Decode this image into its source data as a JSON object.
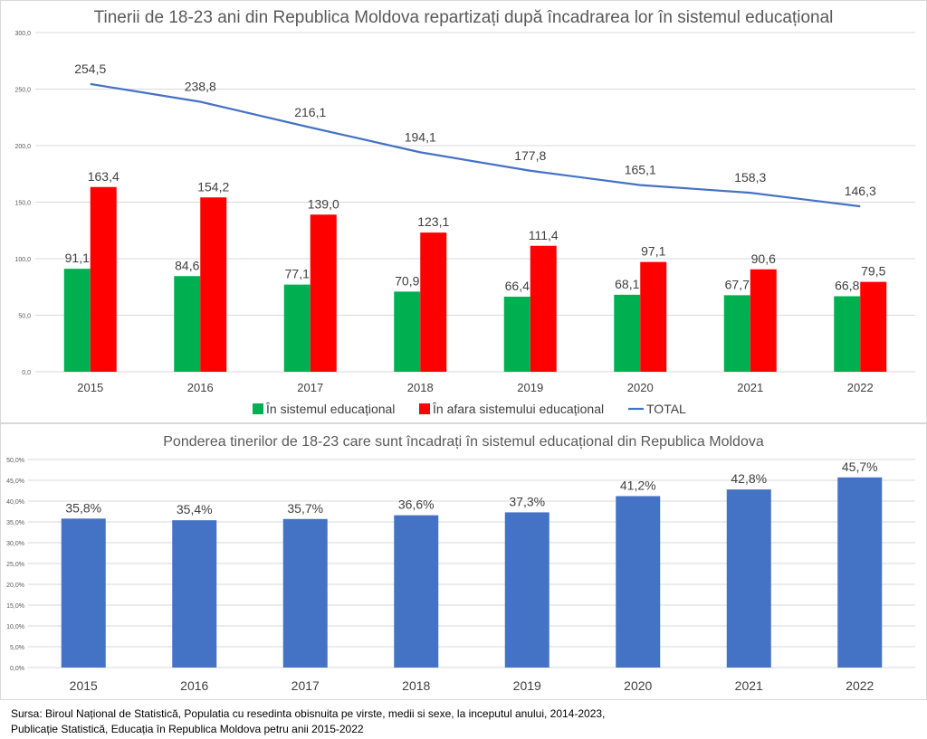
{
  "colors": {
    "green": "#00b050",
    "red": "#ff0000",
    "line": "#4472c4",
    "blue": "#4472c4",
    "grid": "#d9d9d9"
  },
  "chart_data": [
    {
      "type": "bar",
      "title": "Tinerii de 18-23 ani din Republica Moldova repartizați după încadrarea lor în sistemul educațional",
      "categories": [
        "2015",
        "2016",
        "2017",
        "2018",
        "2019",
        "2020",
        "2021",
        "2022"
      ],
      "ylim": [
        0,
        300
      ],
      "yticks": [
        "0,0",
        "50,0",
        "100,0",
        "150,0",
        "200,0",
        "250,0",
        "300,0"
      ],
      "grid": true,
      "legend_position": "bottom",
      "series": [
        {
          "name": "În sistemul educațional",
          "type": "bar",
          "color": "#00b050",
          "values": [
            91.1,
            84.6,
            77.1,
            70.9,
            66.4,
            68.1,
            67.7,
            66.8
          ],
          "labels": [
            "91,1",
            "84,6",
            "77,1",
            "70,9",
            "66,4",
            "68,1",
            "67,7",
            "66,8"
          ]
        },
        {
          "name": "În afara sistemului educațional",
          "type": "bar",
          "color": "#ff0000",
          "values": [
            163.4,
            154.2,
            139.0,
            123.1,
            111.4,
            97.1,
            90.6,
            79.5
          ],
          "labels": [
            "163,4",
            "154,2",
            "139,0",
            "123,1",
            "111,4",
            "97,1",
            "90,6",
            "79,5"
          ]
        },
        {
          "name": "TOTAL",
          "type": "line",
          "color": "#4472c4",
          "values": [
            254.5,
            238.8,
            216.1,
            194.1,
            177.8,
            165.1,
            158.3,
            146.3
          ],
          "labels": [
            "254,5",
            "238,8",
            "216,1",
            "194,1",
            "177,8",
            "165,1",
            "158,3",
            "146,3"
          ]
        }
      ]
    },
    {
      "type": "bar",
      "title": "Ponderea tinerilor de 18-23 care sunt încadrați în sistemul educațional din Republica Moldova",
      "categories": [
        "2015",
        "2016",
        "2017",
        "2018",
        "2019",
        "2020",
        "2021",
        "2022"
      ],
      "ylim": [
        0,
        50
      ],
      "yticks": [
        "0,0%",
        "5,0%",
        "10,0%",
        "15,0%",
        "20,0%",
        "25,0%",
        "30,0%",
        "35,0%",
        "40,0%",
        "45,0%",
        "50,0%"
      ],
      "grid": true,
      "series": [
        {
          "name": "Ponderea",
          "color": "#4472c4",
          "values": [
            35.8,
            35.4,
            35.7,
            36.6,
            37.3,
            41.2,
            42.8,
            45.7
          ],
          "labels": [
            "35,8%",
            "35,4%",
            "35,7%",
            "36,6%",
            "37,3%",
            "41,2%",
            "42,8%",
            "45,7%"
          ]
        }
      ]
    }
  ],
  "source": {
    "line1": "Sursa: Biroul Național de Statistică, Populatia cu resedinta obisnuita pe virste, medii si sexe, la inceputul anului, 2014-2023,",
    "line2": "Publicație Statistică, Educația în Republica Moldova petru anii 2015-2022"
  }
}
